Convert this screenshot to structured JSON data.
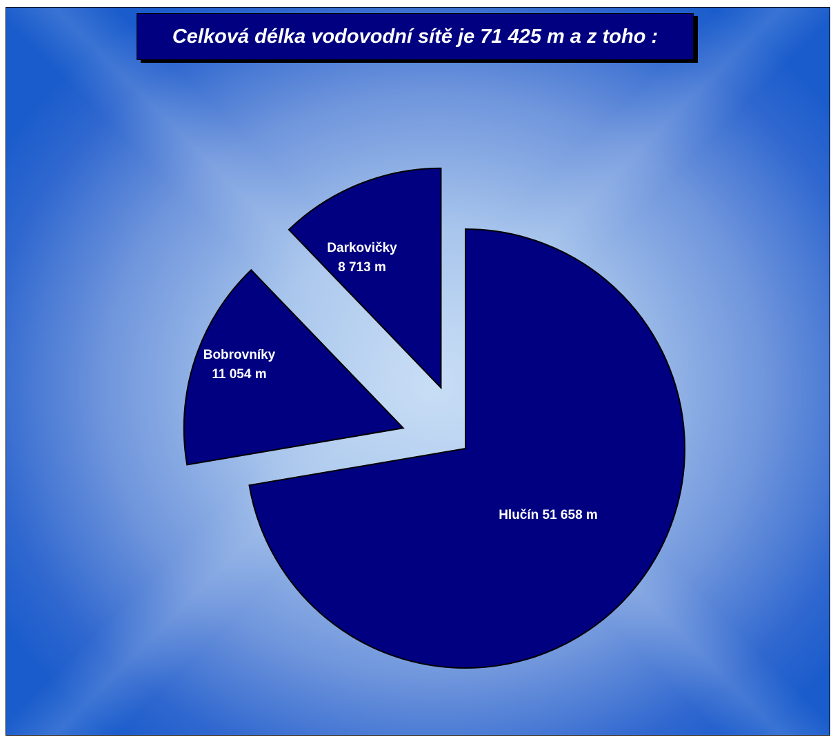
{
  "chart_data": {
    "type": "pie",
    "title": "Celková délka vodovodní sítě je 71 425 m a z toho :",
    "slices": [
      {
        "label": "Hlučín",
        "value": 51658,
        "value_text": "51 658 m",
        "exploded": false
      },
      {
        "label": "Bobrovníky",
        "value": 11054,
        "value_text": "11 054 m",
        "exploded": true
      },
      {
        "label": "Darkovičky",
        "value": 8713,
        "value_text": "8 713 m",
        "exploded": true
      }
    ],
    "total": 71425,
    "colors": {
      "slice": "#000080",
      "title_bg": "#000080",
      "text": "#ffffff",
      "background_center": "#c8def5",
      "background_edge": "#1a5ccc"
    }
  }
}
